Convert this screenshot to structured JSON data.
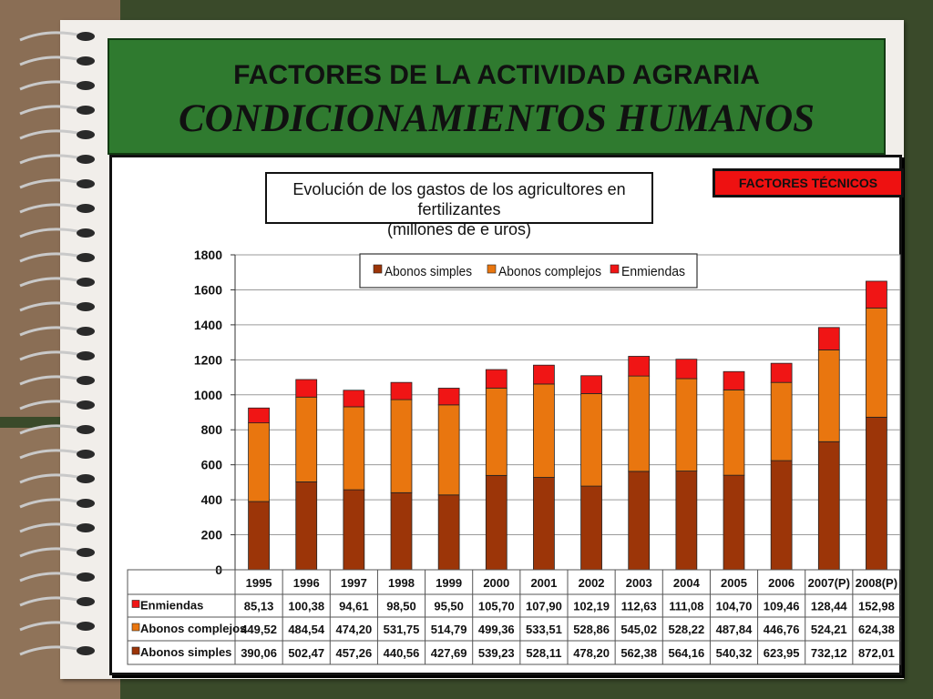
{
  "slide": {
    "title_line1": "FACTORES DE LA ACTIVIDAD AGRARIA",
    "title_line2": "CONDICIONAMIENTOS HUMANOS",
    "tag": "FACTORES TÉCNICOS"
  },
  "colors": {
    "simples": "#9c3508",
    "complejos": "#e9760f",
    "enmiendas": "#f01515",
    "header_bg": "#2f7a2f",
    "tag_bg": "#ee1111"
  },
  "chart_data": {
    "type": "bar",
    "stacked": true,
    "title_line1": "Evolución de los gastos de los agricultores en fertilizantes",
    "title_line2": "(millones de e uros)",
    "categories": [
      "1995",
      "1996",
      "1997",
      "1998",
      "1999",
      "2000",
      "2001",
      "2002",
      "2003",
      "2004",
      "2005",
      "2006",
      "2007(P)",
      "2008(P)"
    ],
    "series": [
      {
        "name": "Abonos simples",
        "values": [
          390.06,
          502.47,
          457.26,
          440.56,
          427.69,
          539.23,
          528.11,
          478.2,
          562.38,
          564.16,
          540.32,
          623.95,
          732.12,
          872.01
        ],
        "labels": [
          "390,06",
          "502,47",
          "457,26",
          "440,56",
          "427,69",
          "539,23",
          "528,11",
          "478,20",
          "562,38",
          "564,16",
          "540,32",
          "623,95",
          "732,12",
          "872,01"
        ]
      },
      {
        "name": "Abonos complejos",
        "values": [
          449.52,
          484.54,
          474.2,
          531.75,
          514.79,
          499.36,
          533.51,
          528.86,
          545.02,
          528.22,
          487.84,
          446.76,
          524.21,
          624.38
        ],
        "labels": [
          "449,52",
          "484,54",
          "474,20",
          "531,75",
          "514,79",
          "499,36",
          "533,51",
          "528,86",
          "545,02",
          "528,22",
          "487,84",
          "446,76",
          "524,21",
          "624,38"
        ]
      },
      {
        "name": "Enmiendas",
        "values": [
          85.13,
          100.38,
          94.61,
          98.5,
          95.5,
          105.7,
          107.9,
          102.19,
          112.63,
          111.08,
          104.7,
          109.46,
          128.44,
          152.98
        ],
        "labels": [
          "85,13",
          "100,38",
          "94,61",
          "98,50",
          "95,50",
          "105,70",
          "107,90",
          "102,19",
          "112,63",
          "111,08",
          "104,70",
          "109,46",
          "128,44",
          "152,98"
        ]
      }
    ],
    "y_ticks": [
      "0",
      "200",
      "400",
      "600",
      "800",
      "1000",
      "1200",
      "1400",
      "1600",
      "1800"
    ],
    "ylim": [
      0,
      1800
    ],
    "grid": true,
    "legend_position": "top",
    "data_table": true
  }
}
